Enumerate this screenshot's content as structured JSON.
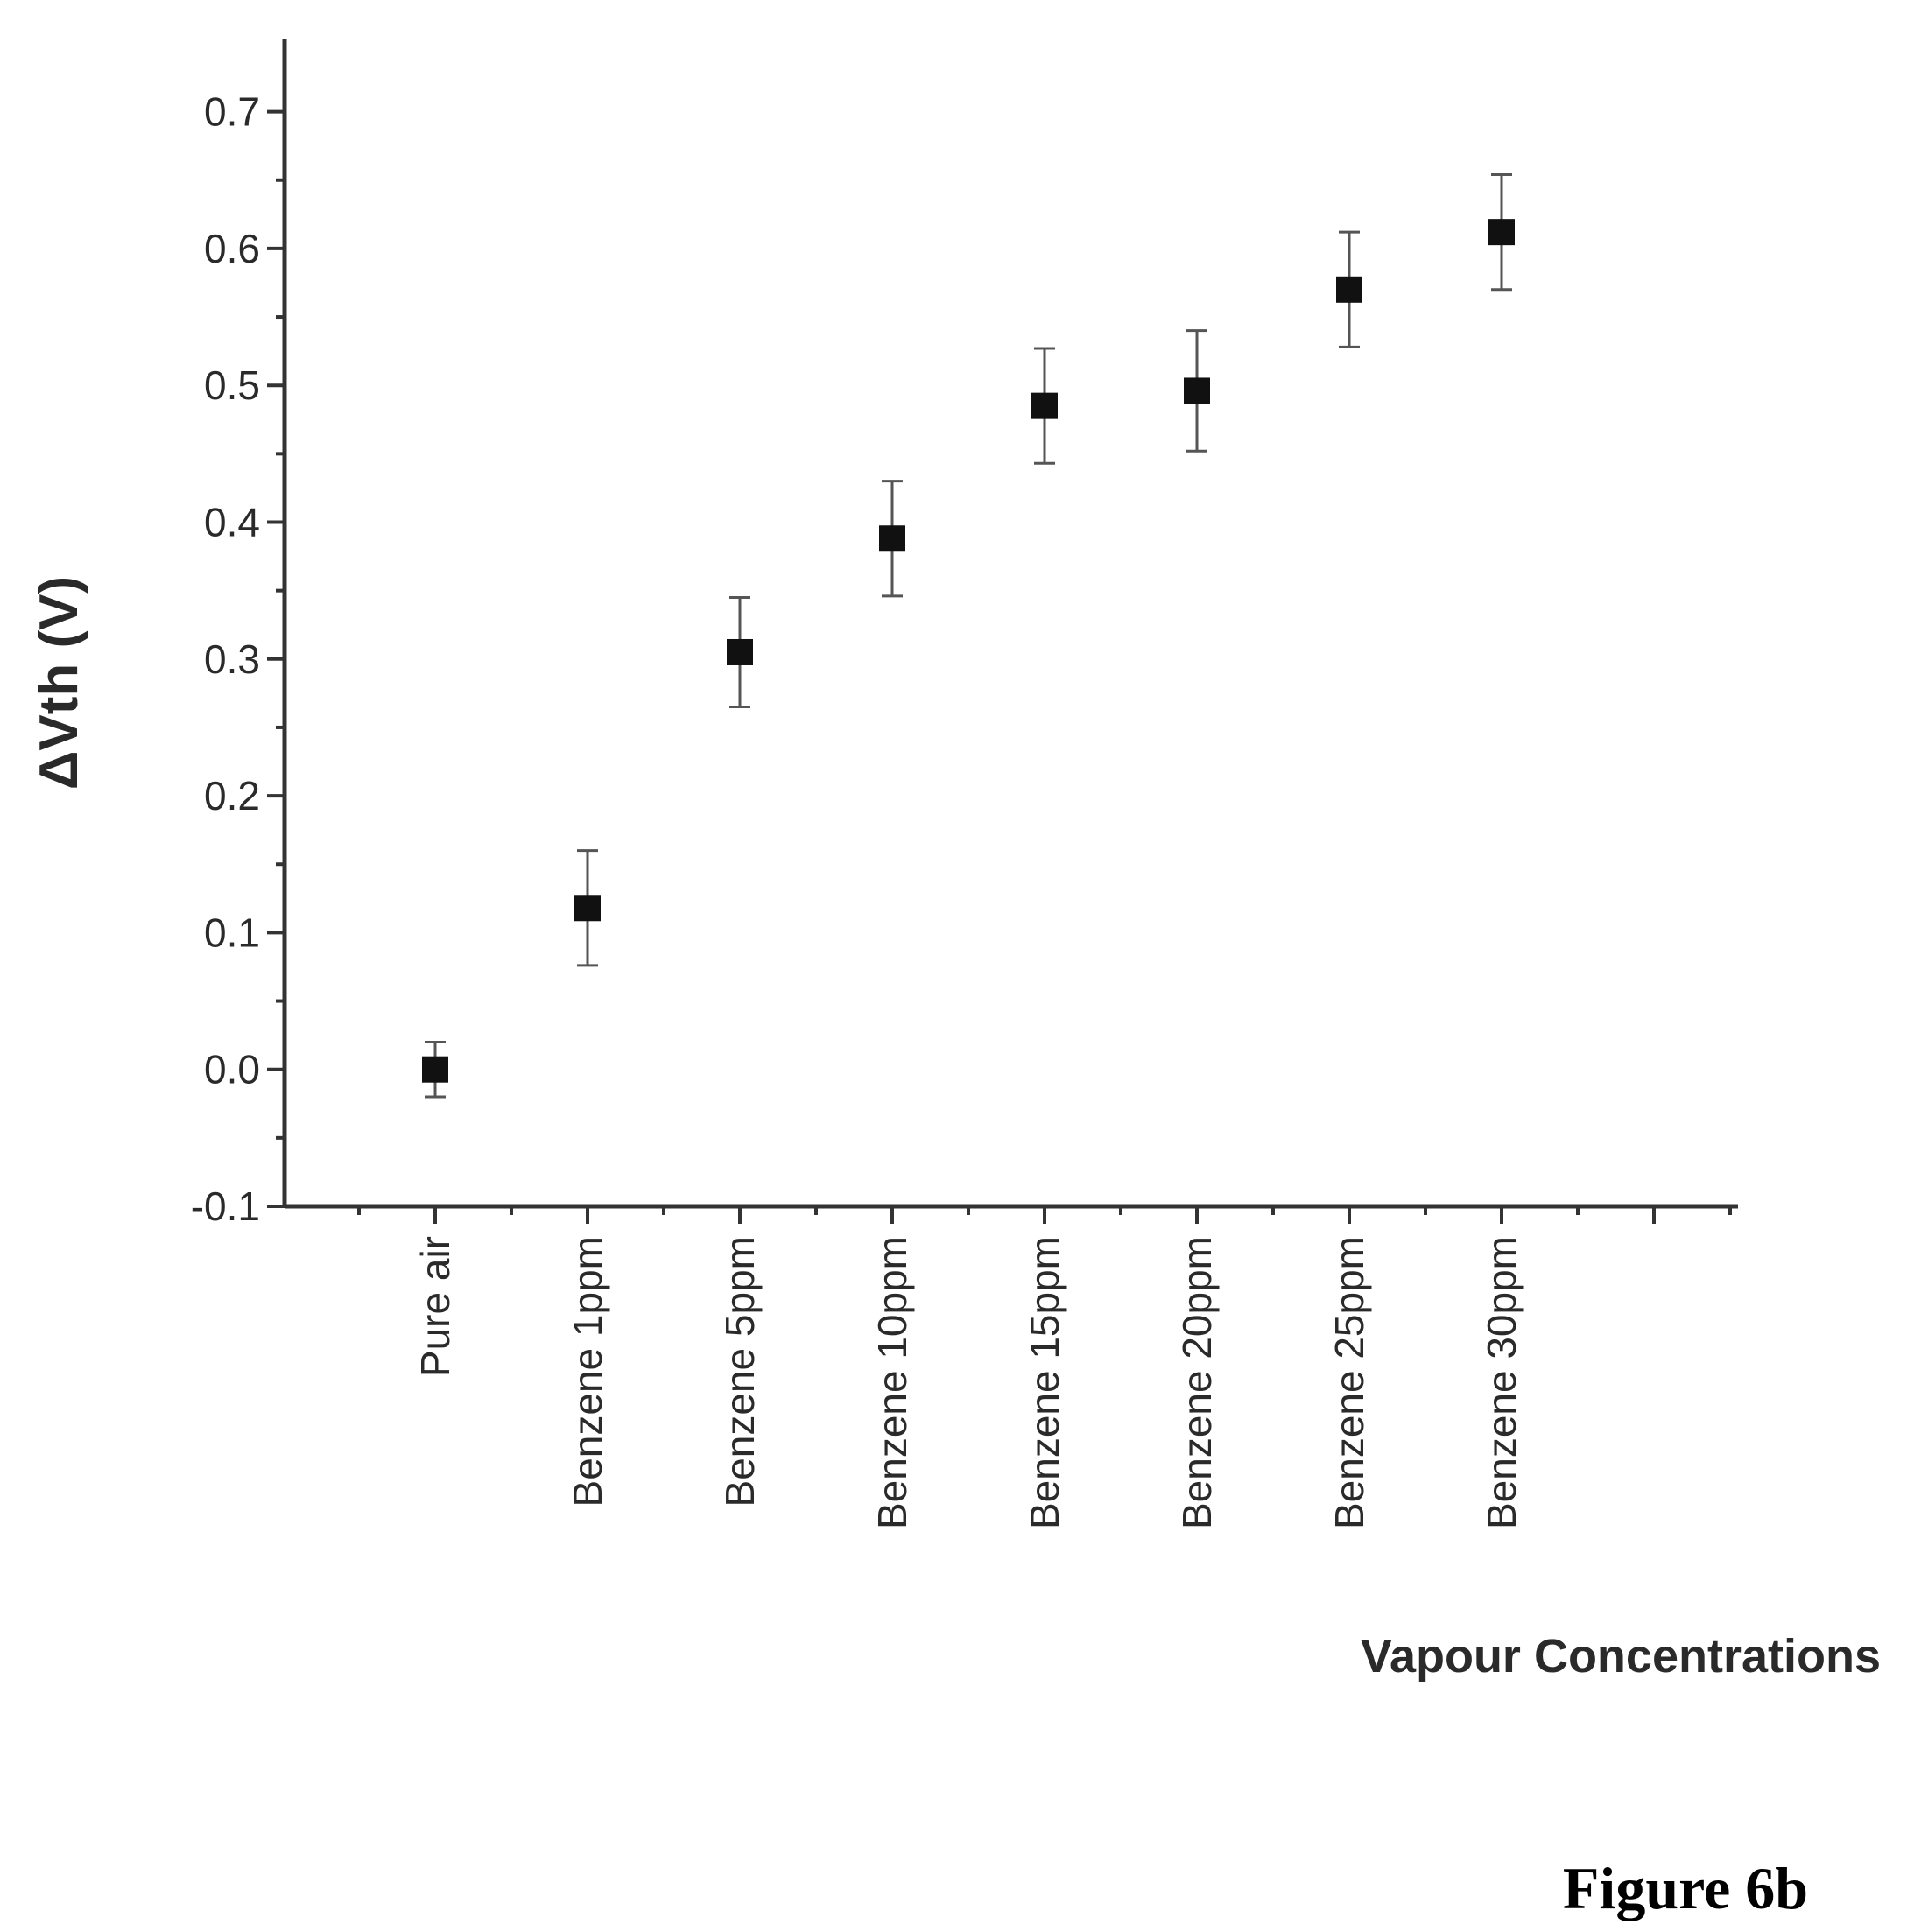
{
  "chart_data": {
    "type": "scatter",
    "categories": [
      "Pure air",
      "Benzene 1ppm",
      "Benzene 5ppm",
      "Benzene 10ppm",
      "Benzene 15ppm",
      "Benzene 20ppm",
      "Benzene 25ppm",
      "Benzene 30ppm"
    ],
    "values": [
      0.0,
      0.118,
      0.305,
      0.388,
      0.485,
      0.496,
      0.57,
      0.612
    ],
    "error": [
      0.02,
      0.042,
      0.04,
      0.042,
      0.042,
      0.044,
      0.042,
      0.042
    ],
    "xlabel": "Vapour Concentrations",
    "ylabel": "ΔVth (V)",
    "ylim": [
      -0.1,
      0.75
    ],
    "yticks": [
      -0.1,
      0.0,
      0.1,
      0.2,
      0.3,
      0.4,
      0.5,
      0.6,
      0.7
    ],
    "ytick_labels": [
      "-0.1",
      "0.0",
      "0.1",
      "0.2",
      "0.3",
      "0.4",
      "0.5",
      "0.6",
      "0.7"
    ],
    "grid": false,
    "legend": "none"
  },
  "caption": "Figure 6b"
}
